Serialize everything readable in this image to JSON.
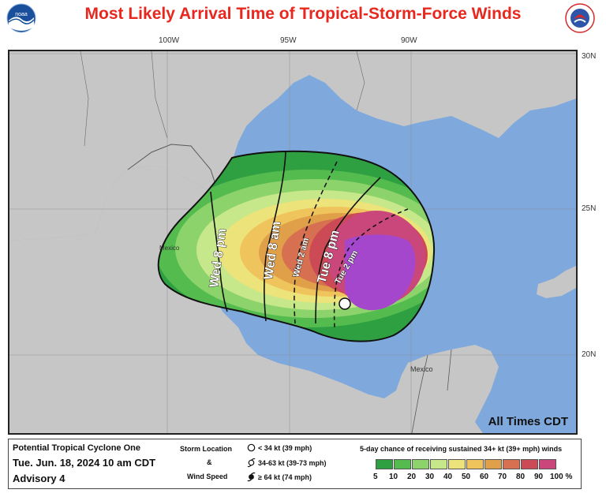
{
  "title": "Most Likely Arrival Time of Tropical-Storm-Force Winds",
  "logos": {
    "left": "noaa-logo",
    "right": "national-weather-service-logo"
  },
  "map": {
    "longitude_labels": [
      "100W",
      "95W",
      "90W"
    ],
    "latitude_labels": [
      "30N",
      "25N",
      "20N"
    ],
    "place_labels": [
      "Mexico",
      "Mexico"
    ],
    "all_times": "All Times CDT",
    "colors": {
      "land": "#c6c6c6",
      "water": "#7fa9dc",
      "border": "#5a5a5a"
    },
    "arrival_contours": [
      {
        "label": "Wed 8 pm",
        "style": "solid"
      },
      {
        "label": "Wed 8 am",
        "style": "solid"
      },
      {
        "label": "Wed 2 am",
        "style": "dashed"
      },
      {
        "label": "Tue 8 pm",
        "style": "solid"
      },
      {
        "label": "Tue 2 pm",
        "style": "dashed"
      }
    ],
    "storm_position": {
      "marker": "< 34 kt",
      "lat": 21.8,
      "lon": -92.7
    }
  },
  "legend": {
    "storm_name": "Potential Tropical Cyclone One",
    "date": "Tue. Jun. 18, 2024  10 am CDT",
    "advisory": "Advisory 4",
    "location_header_1": "Storm Location",
    "location_header_2": "&",
    "location_header_3": "Wind Speed",
    "symbols": [
      {
        "label": "< 34 kt (39 mph)",
        "icon": "open-circle-icon"
      },
      {
        "label": "34-63 kt (39-73 mph)",
        "icon": "tropical-storm-icon"
      },
      {
        "label": "≥ 64 kt (74 mph)",
        "icon": "hurricane-icon"
      }
    ],
    "probability_title": "5-day chance of receiving sustained 34+ kt (39+ mph) winds",
    "probability_labels": [
      "5",
      "10",
      "20",
      "30",
      "40",
      "50",
      "60",
      "70",
      "80",
      "90",
      "100 %"
    ],
    "probability_colors": [
      "#2fa042",
      "#54bb4f",
      "#8dd36c",
      "#c7e88a",
      "#ece37a",
      "#f0c45c",
      "#e0a04a",
      "#d77050",
      "#cc4a55",
      "#c9477b",
      "#b149c8"
    ]
  }
}
